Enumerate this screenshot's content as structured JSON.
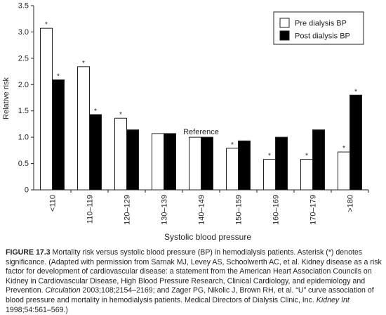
{
  "chart_data": {
    "type": "bar",
    "title": "",
    "xlabel": "Systolic blood pressure",
    "ylabel": "Relative risk",
    "ylim": [
      0,
      3.5
    ],
    "yticks": [
      "0",
      "0.5",
      "1.0",
      "1.5",
      "2.0",
      "2.5",
      "3.0",
      "3.5"
    ],
    "grid": false,
    "legend_position": "top-right",
    "categories": [
      "<110",
      "110–119",
      "120–129",
      "130–139",
      "140–149",
      "150–159",
      "160–169",
      "170–179",
      ">180"
    ],
    "series": [
      {
        "name": "Pre dialysis BP",
        "color": "#ffffff",
        "values": [
          3.07,
          2.34,
          1.36,
          1.07,
          1.0,
          0.79,
          0.58,
          0.58,
          0.72
        ],
        "significant": [
          true,
          true,
          true,
          false,
          false,
          true,
          true,
          true,
          true
        ]
      },
      {
        "name": "Post dialysis BP",
        "color": "#000000",
        "values": [
          2.09,
          1.43,
          1.14,
          1.07,
          1.0,
          0.93,
          1.0,
          1.14,
          1.8
        ],
        "significant": [
          true,
          true,
          false,
          false,
          false,
          false,
          false,
          false,
          true
        ]
      }
    ],
    "annotations": [
      {
        "text": "Reference",
        "category": "140–149"
      }
    ],
    "significance_marker": "*"
  },
  "caption": {
    "label": "FIGURE 17.3",
    "parts": [
      {
        "t": "  Mortality risk versus systolic blood pressure (BP) in hemodialysis patients. Asterisk (*) denotes significance. (Adapted with permission from Sarnak MJ, Levey AS, Schoolwerth AC, et al. Kidney disease as a risk factor for development of cardiovascular disease: a statement from the American Heart Association Councils on Kidney in Cardiovascular Disease, High Blood Pressure Research, Clinical Cardiology, and epidemiology and Prevention. ",
        "s": "n"
      },
      {
        "t": "Circulation",
        "s": "i"
      },
      {
        "t": " 2003;108;2154–2169; and Zager PG, Nikolic J, Brown RH, et al. “U” curve association of blood pressure and mortality in hemodialysis patients. Medical Directors of Dialysis Clinic, Inc. ",
        "s": "n"
      },
      {
        "t": "Kidney Int",
        "s": "i"
      },
      {
        "t": " 1998;54:561–569.)",
        "s": "n"
      }
    ]
  }
}
